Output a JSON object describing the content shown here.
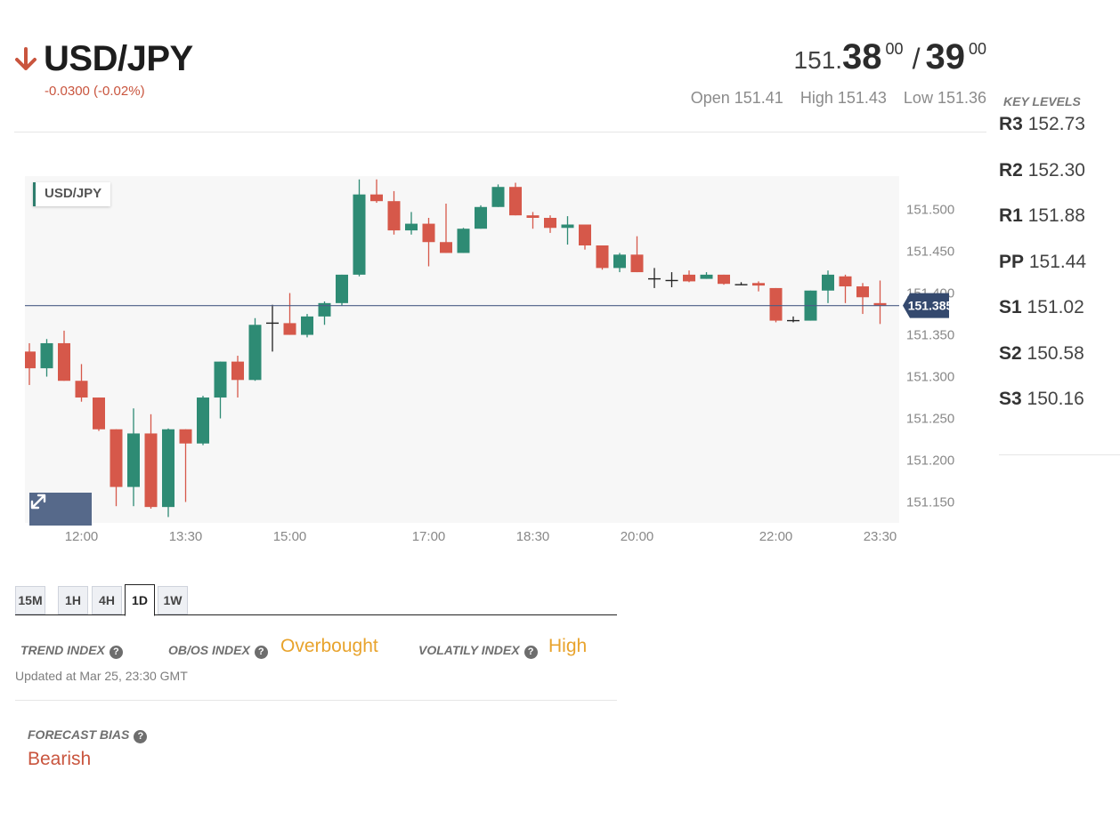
{
  "header": {
    "pair": "USD/JPY",
    "change": "-0.0300 (-0.02%)",
    "direction_icon": "arrow-down-icon",
    "down_color": "#c9553e",
    "bid": {
      "lead": "151.",
      "big": "38",
      "sup": "00"
    },
    "ask": {
      "big": "39",
      "sup": "00"
    },
    "slash": "/",
    "open": "Open 151.41",
    "high": "High 151.43",
    "low": "Low 151.36"
  },
  "key_levels": {
    "title": "KEY LEVELS",
    "levels": [
      {
        "name": "R3",
        "value": "152.73"
      },
      {
        "name": "R2",
        "value": "152.30"
      },
      {
        "name": "R1",
        "value": "151.88"
      },
      {
        "name": "PP",
        "value": "151.44"
      },
      {
        "name": "S1",
        "value": "151.02"
      },
      {
        "name": "S2",
        "value": "150.58"
      },
      {
        "name": "S3",
        "value": "150.16"
      }
    ]
  },
  "chart": {
    "label": "USD/JPY",
    "expand_icon": "expand-icon",
    "up_color": "#2e8b74",
    "down_color": "#d6584a"
  },
  "chart_data": {
    "type": "candlestick",
    "title": "USD/JPY",
    "ylim": [
      151.125,
      151.54
    ],
    "y_ticks": [
      "151.500",
      "151.450",
      "151.400",
      "151.350",
      "151.300",
      "151.250",
      "151.200",
      "151.150"
    ],
    "x_ticks": [
      {
        "label": "12:00",
        "index": 3
      },
      {
        "label": "13:30",
        "index": 9
      },
      {
        "label": "15:00",
        "index": 15
      },
      {
        "label": "17:00",
        "index": 23
      },
      {
        "label": "18:30",
        "index": 29
      },
      {
        "label": "20:00",
        "index": 35
      },
      {
        "label": "22:00",
        "index": 43
      },
      {
        "label": "23:30",
        "index": 49
      }
    ],
    "current_price": 151.385,
    "current_price_label": "151.385",
    "candles": [
      {
        "o": 151.33,
        "h": 151.34,
        "l": 151.29,
        "c": 151.31
      },
      {
        "o": 151.31,
        "h": 151.345,
        "l": 151.3,
        "c": 151.34
      },
      {
        "o": 151.34,
        "h": 151.355,
        "l": 151.295,
        "c": 151.295
      },
      {
        "o": 151.295,
        "h": 151.315,
        "l": 151.27,
        "c": 151.275
      },
      {
        "o": 151.275,
        "h": 151.275,
        "l": 151.235,
        "c": 151.237
      },
      {
        "o": 151.237,
        "h": 151.237,
        "l": 151.145,
        "c": 151.168
      },
      {
        "o": 151.168,
        "h": 151.262,
        "l": 151.145,
        "c": 151.232
      },
      {
        "o": 151.232,
        "h": 151.255,
        "l": 151.142,
        "c": 151.144
      },
      {
        "o": 151.144,
        "h": 151.238,
        "l": 151.132,
        "c": 151.237
      },
      {
        "o": 151.237,
        "h": 151.237,
        "l": 151.15,
        "c": 151.22
      },
      {
        "o": 151.22,
        "h": 151.277,
        "l": 151.218,
        "c": 151.275
      },
      {
        "o": 151.275,
        "h": 151.318,
        "l": 151.25,
        "c": 151.318
      },
      {
        "o": 151.318,
        "h": 151.325,
        "l": 151.275,
        "c": 151.296
      },
      {
        "o": 151.296,
        "h": 151.37,
        "l": 151.295,
        "c": 151.362
      },
      {
        "o": 151.363,
        "h": 151.386,
        "l": 151.33,
        "c": 151.364
      },
      {
        "o": 151.364,
        "h": 151.4,
        "l": 151.35,
        "c": 151.35
      },
      {
        "o": 151.35,
        "h": 151.375,
        "l": 151.347,
        "c": 151.372
      },
      {
        "o": 151.372,
        "h": 151.39,
        "l": 151.362,
        "c": 151.388
      },
      {
        "o": 151.388,
        "h": 151.422,
        "l": 151.385,
        "c": 151.422
      },
      {
        "o": 151.422,
        "h": 151.536,
        "l": 151.42,
        "c": 151.518
      },
      {
        "o": 151.518,
        "h": 151.536,
        "l": 151.508,
        "c": 151.51
      },
      {
        "o": 151.51,
        "h": 151.522,
        "l": 151.47,
        "c": 151.475
      },
      {
        "o": 151.475,
        "h": 151.497,
        "l": 151.47,
        "c": 151.483
      },
      {
        "o": 151.483,
        "h": 151.49,
        "l": 151.432,
        "c": 151.461
      },
      {
        "o": 151.461,
        "h": 151.507,
        "l": 151.448,
        "c": 151.448
      },
      {
        "o": 151.448,
        "h": 151.478,
        "l": 151.448,
        "c": 151.477
      },
      {
        "o": 151.477,
        "h": 151.505,
        "l": 151.477,
        "c": 151.503
      },
      {
        "o": 151.503,
        "h": 151.53,
        "l": 151.503,
        "c": 151.527
      },
      {
        "o": 151.527,
        "h": 151.532,
        "l": 151.493,
        "c": 151.493
      },
      {
        "o": 151.493,
        "h": 151.497,
        "l": 151.477,
        "c": 151.49
      },
      {
        "o": 151.49,
        "h": 151.493,
        "l": 151.472,
        "c": 151.478
      },
      {
        "o": 151.478,
        "h": 151.492,
        "l": 151.458,
        "c": 151.482
      },
      {
        "o": 151.482,
        "h": 151.482,
        "l": 151.452,
        "c": 151.457
      },
      {
        "o": 151.457,
        "h": 151.457,
        "l": 151.428,
        "c": 151.43
      },
      {
        "o": 151.43,
        "h": 151.448,
        "l": 151.425,
        "c": 151.446
      },
      {
        "o": 151.446,
        "h": 151.468,
        "l": 151.425,
        "c": 151.425
      },
      {
        "o": 151.417,
        "h": 151.43,
        "l": 151.406,
        "c": 151.417
      },
      {
        "o": 151.415,
        "h": 151.425,
        "l": 151.407,
        "c": 151.415
      },
      {
        "o": 151.422,
        "h": 151.427,
        "l": 151.413,
        "c": 151.414
      },
      {
        "o": 151.417,
        "h": 151.425,
        "l": 151.417,
        "c": 151.422
      },
      {
        "o": 151.422,
        "h": 151.422,
        "l": 151.41,
        "c": 151.411
      },
      {
        "o": 151.411,
        "h": 151.413,
        "l": 151.41,
        "c": 151.41
      },
      {
        "o": 151.412,
        "h": 151.414,
        "l": 151.402,
        "c": 151.409
      },
      {
        "o": 151.406,
        "h": 151.406,
        "l": 151.365,
        "c": 151.367
      },
      {
        "o": 151.367,
        "h": 151.372,
        "l": 151.365,
        "c": 151.367
      },
      {
        "o": 151.367,
        "h": 151.403,
        "l": 151.367,
        "c": 151.403
      },
      {
        "o": 151.403,
        "h": 151.427,
        "l": 151.388,
        "c": 151.422
      },
      {
        "o": 151.42,
        "h": 151.422,
        "l": 151.388,
        "c": 151.408
      },
      {
        "o": 151.408,
        "h": 151.412,
        "l": 151.375,
        "c": 151.395
      },
      {
        "o": 151.388,
        "h": 151.415,
        "l": 151.363,
        "c": 151.385
      }
    ]
  },
  "tabs": [
    "15M",
    "1H",
    "4H",
    "1D",
    "1W"
  ],
  "active_tab": "1D",
  "indices": {
    "trend_label": "TREND INDEX",
    "obos_label": "OB/OS INDEX",
    "obos_value": "Overbought",
    "vol_label": "VOLATILY INDEX",
    "vol_value": "High",
    "help_glyph": "?",
    "value_color": "#e8a32c"
  },
  "updated": "Updated at Mar 25, 23:30 GMT",
  "forecast": {
    "label": "FORECAST BIAS",
    "value": "Bearish"
  }
}
